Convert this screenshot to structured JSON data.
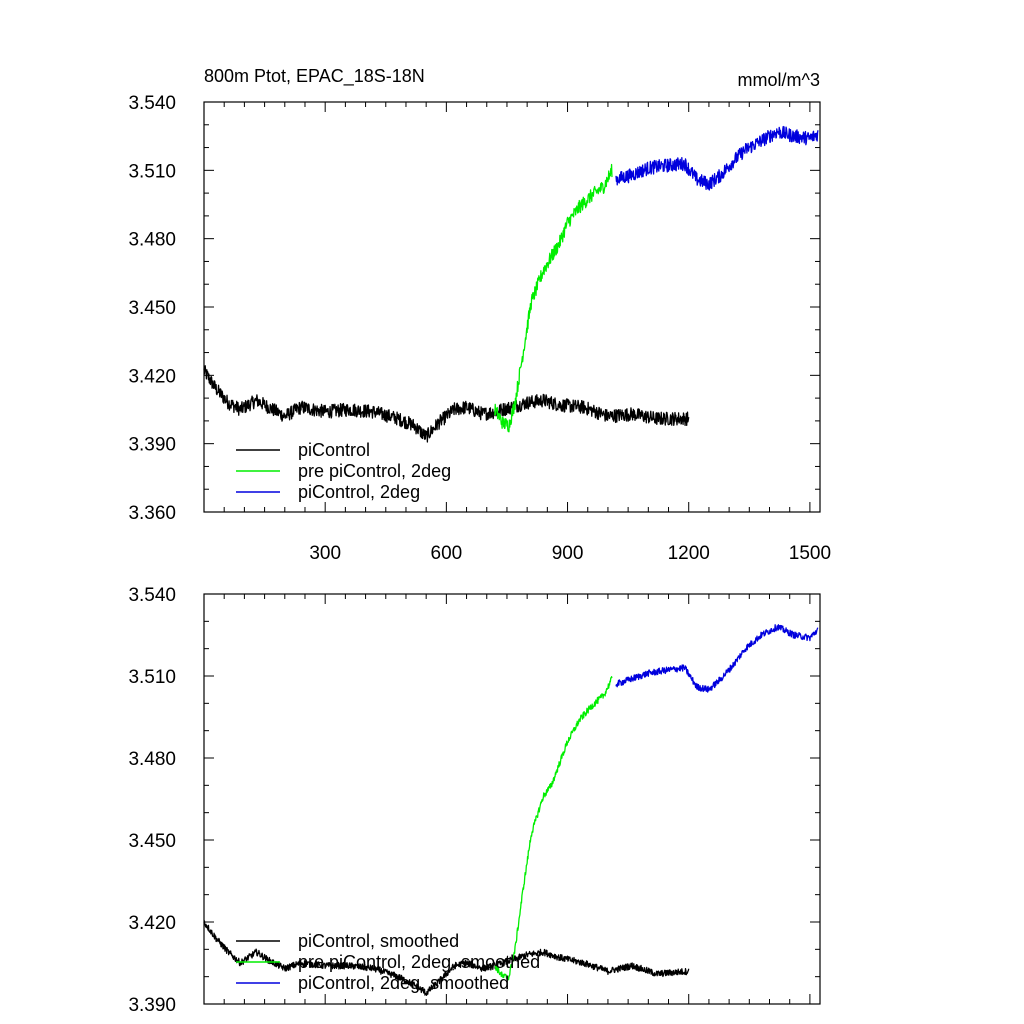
{
  "chart_data": [
    {
      "type": "line",
      "title": "800m Ptot, EPAC_18S-18N",
      "units": "mmol/m^3",
      "xlim": [
        0,
        1525
      ],
      "ylim": [
        3.36,
        3.54
      ],
      "xticks": [
        300,
        600,
        900,
        1200,
        1500
      ],
      "xtick_labels": [
        "300",
        "600",
        "900",
        "1200",
        "1500"
      ],
      "yticks": [
        3.36,
        3.39,
        3.42,
        3.45,
        3.48,
        3.51,
        3.54
      ],
      "ytick_labels": [
        "3.360",
        "3.390",
        "3.420",
        "3.450",
        "3.480",
        "3.510",
        "3.540"
      ],
      "legend_position": "bottom-left",
      "grid": false,
      "series": [
        {
          "name": "piControl",
          "color": "#000000",
          "noise": 0.003,
          "points": [
            [
              0,
              3.422
            ],
            [
              30,
              3.414
            ],
            [
              60,
              3.408
            ],
            [
              90,
              3.405
            ],
            [
              130,
              3.409
            ],
            [
              160,
              3.406
            ],
            [
              200,
              3.402
            ],
            [
              240,
              3.406
            ],
            [
              300,
              3.404
            ],
            [
              360,
              3.405
            ],
            [
              420,
              3.404
            ],
            [
              480,
              3.401
            ],
            [
              520,
              3.398
            ],
            [
              550,
              3.393
            ],
            [
              580,
              3.399
            ],
            [
              620,
              3.405
            ],
            [
              650,
              3.406
            ],
            [
              690,
              3.403
            ],
            [
              720,
              3.404
            ],
            [
              760,
              3.406
            ],
            [
              800,
              3.408
            ],
            [
              840,
              3.409
            ],
            [
              880,
              3.407
            ],
            [
              940,
              3.406
            ],
            [
              1000,
              3.402
            ],
            [
              1060,
              3.403
            ],
            [
              1120,
              3.401
            ],
            [
              1200,
              3.401
            ]
          ]
        },
        {
          "name": "pre piControl, 2deg",
          "color": "#00ee00",
          "noise": 0.003,
          "points": [
            [
              720,
              3.405
            ],
            [
              740,
              3.399
            ],
            [
              755,
              3.398
            ],
            [
              770,
              3.408
            ],
            [
              790,
              3.43
            ],
            [
              810,
              3.452
            ],
            [
              840,
              3.466
            ],
            [
              860,
              3.472
            ],
            [
              880,
              3.478
            ],
            [
              900,
              3.487
            ],
            [
              930,
              3.494
            ],
            [
              960,
              3.499
            ],
            [
              990,
              3.503
            ],
            [
              1010,
              3.51
            ]
          ]
        },
        {
          "name": "piControl, 2deg",
          "color": "#0000dd",
          "noise": 0.003,
          "points": [
            [
              1020,
              3.506
            ],
            [
              1060,
              3.508
            ],
            [
              1100,
              3.511
            ],
            [
              1140,
              3.512
            ],
            [
              1190,
              3.513
            ],
            [
              1220,
              3.506
            ],
            [
              1250,
              3.504
            ],
            [
              1280,
              3.508
            ],
            [
              1310,
              3.514
            ],
            [
              1340,
              3.519
            ],
            [
              1380,
              3.523
            ],
            [
              1420,
              3.527
            ],
            [
              1460,
              3.525
            ],
            [
              1500,
              3.524
            ],
            [
              1520,
              3.526
            ]
          ]
        }
      ]
    },
    {
      "type": "line",
      "xlim": [
        0,
        1525
      ],
      "ylim": [
        3.39,
        3.54
      ],
      "xticks": [
        300,
        600,
        900,
        1200,
        1500
      ],
      "yticks": [
        3.39,
        3.42,
        3.45,
        3.48,
        3.51,
        3.54
      ],
      "ytick_labels": [
        "3.390",
        "3.420",
        "3.450",
        "3.480",
        "3.510",
        "3.540"
      ],
      "legend_position": "bottom-left",
      "grid": false,
      "series": [
        {
          "name": "piControl, smoothed",
          "color": "#000000",
          "noise": 0.0012,
          "points": [
            [
              0,
              3.42
            ],
            [
              30,
              3.414
            ],
            [
              60,
              3.409
            ],
            [
              90,
              3.405
            ],
            [
              130,
              3.409
            ],
            [
              160,
              3.406
            ],
            [
              200,
              3.403
            ],
            [
              240,
              3.405
            ],
            [
              300,
              3.404
            ],
            [
              360,
              3.404
            ],
            [
              420,
              3.403
            ],
            [
              480,
              3.4
            ],
            [
              520,
              3.397
            ],
            [
              550,
              3.394
            ],
            [
              580,
              3.398
            ],
            [
              620,
              3.404
            ],
            [
              650,
              3.405
            ],
            [
              690,
              3.403
            ],
            [
              720,
              3.404
            ],
            [
              760,
              3.406
            ],
            [
              800,
              3.408
            ],
            [
              840,
              3.409
            ],
            [
              880,
              3.407
            ],
            [
              940,
              3.405
            ],
            [
              1000,
              3.402
            ],
            [
              1060,
              3.404
            ],
            [
              1120,
              3.401
            ],
            [
              1200,
              3.402
            ]
          ]
        },
        {
          "name": "pre piControl, 2deg, smoothed",
          "color": "#00ee00",
          "noise": 0.0012,
          "points": [
            [
              720,
              3.404
            ],
            [
              740,
              3.4
            ],
            [
              755,
              3.4
            ],
            [
              770,
              3.41
            ],
            [
              790,
              3.432
            ],
            [
              810,
              3.452
            ],
            [
              840,
              3.466
            ],
            [
              860,
              3.47
            ],
            [
              880,
              3.478
            ],
            [
              900,
              3.486
            ],
            [
              930,
              3.494
            ],
            [
              960,
              3.499
            ],
            [
              990,
              3.503
            ],
            [
              1010,
              3.509
            ]
          ]
        },
        {
          "name": "piControl, 2deg, smoothed",
          "color": "#0000dd",
          "noise": 0.0012,
          "points": [
            [
              1020,
              3.507
            ],
            [
              1060,
              3.509
            ],
            [
              1100,
              3.511
            ],
            [
              1140,
              3.512
            ],
            [
              1190,
              3.513
            ],
            [
              1220,
              3.506
            ],
            [
              1250,
              3.505
            ],
            [
              1280,
              3.509
            ],
            [
              1310,
              3.514
            ],
            [
              1340,
              3.52
            ],
            [
              1380,
              3.525
            ],
            [
              1420,
              3.528
            ],
            [
              1460,
              3.525
            ],
            [
              1500,
              3.524
            ],
            [
              1520,
              3.527
            ]
          ]
        }
      ]
    }
  ]
}
